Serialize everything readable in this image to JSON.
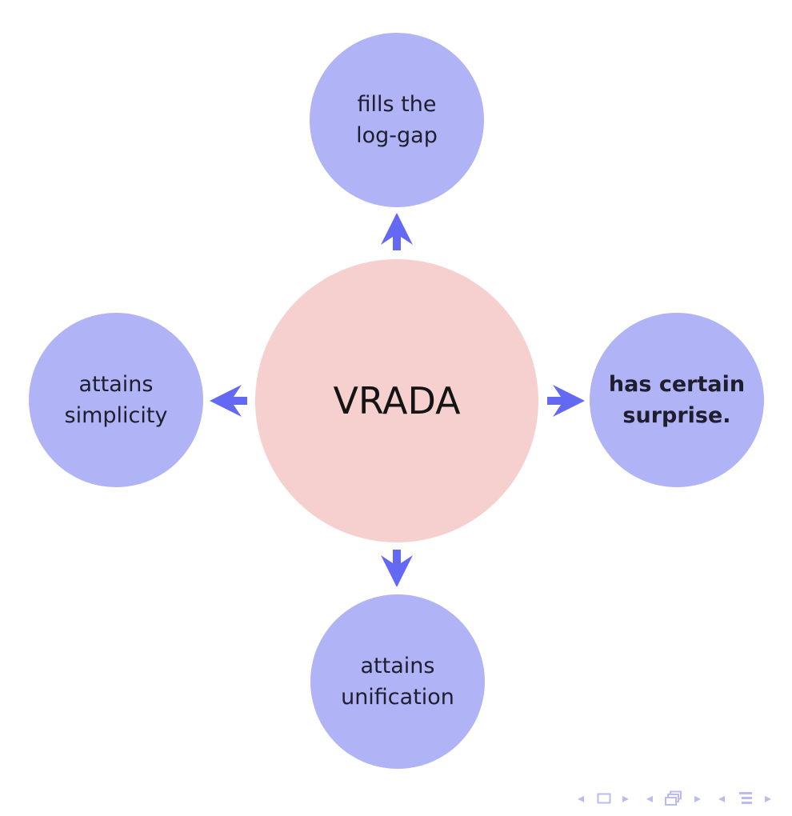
{
  "center": {
    "label": "VRADA",
    "color": "#f6cfcf"
  },
  "nodes": {
    "top": {
      "line1": "fills the",
      "line2": "log-gap"
    },
    "left": {
      "line1": "attains",
      "line2": "simplicity"
    },
    "right": {
      "line1": "has certain",
      "line2": "surprise."
    },
    "bottom": {
      "line1": "attains",
      "line2": "unification"
    }
  },
  "colors": {
    "node": "#b0b3f6",
    "arrow": "#6369f2",
    "nav": "#b9bcec"
  },
  "navigation": {
    "icons": [
      "triangle-left-icon",
      "frame-icon",
      "triangle-right-icon",
      "triangle-left-icon",
      "subsection-icon",
      "triangle-right-icon",
      "triangle-left-icon",
      "section-icon",
      "triangle-right-icon"
    ]
  }
}
